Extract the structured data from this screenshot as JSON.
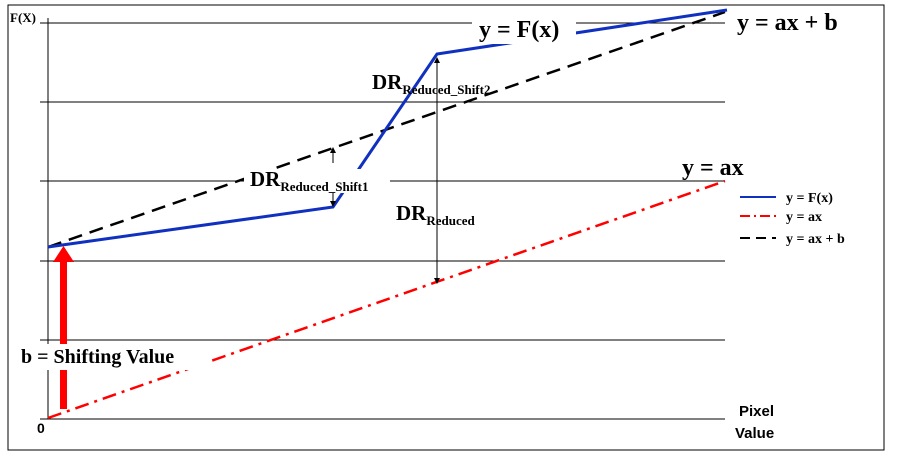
{
  "axis": {
    "y_label": "F(X)",
    "origin_label": "0",
    "x_label_line1": "Pixel",
    "x_label_line2": "Value"
  },
  "curves": {
    "fx_label": "y = F(x)",
    "affine_label": "y = ax + b",
    "linear_label": "y = ax"
  },
  "annotations": {
    "shift_label": "b = Shifting Value",
    "dr_main": "DR",
    "dr_reduced_sub": "Reduced",
    "dr_shift1_sub": "Reduced_Shift1",
    "dr_shift2_sub": "Reduced_Shift2"
  },
  "legend": [
    {
      "label": "y = F(x)",
      "color": "#1030c0",
      "style": "solid"
    },
    {
      "label": "y = ax",
      "color": "#ff0000",
      "style": "dash-dot"
    },
    {
      "label": "y = ax + b",
      "color": "#000000",
      "style": "dashed"
    }
  ],
  "colors": {
    "fx": "#1030c0",
    "linear": "#ff0000",
    "affine": "#000000",
    "shift_arrow": "#ff0000",
    "gridline": "#000000"
  }
}
